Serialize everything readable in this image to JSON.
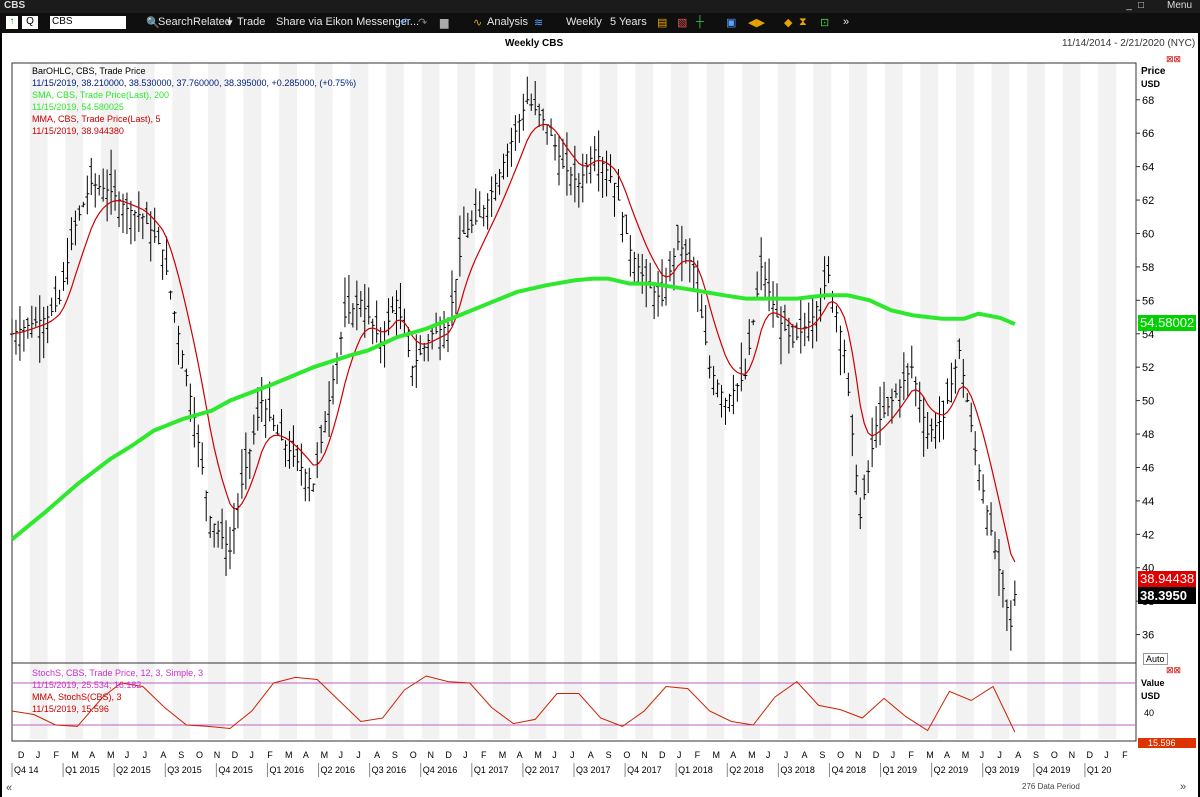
{
  "window": {
    "title": "CBS",
    "menu_label": "Menu"
  },
  "toolbar": {
    "instrument_type": "Q",
    "ric_value": "CBS",
    "items": [
      "Search",
      "Related",
      "Trade",
      "Share via Eikon Messenger...",
      "Analysis",
      "Weekly",
      "5 Years"
    ]
  },
  "chart_header": {
    "title": "Weekly CBS",
    "date_range": "11/14/2014 - 2/21/2020 (NYC)"
  },
  "price_legend": [
    {
      "text": "BarOHLC, CBS, Trade Price",
      "color": "#000000"
    },
    {
      "text": "11/15/2019, 38.210000, 38.530000, 37.760000, 38.395000, +0.285000, (+0.75%)",
      "color": "#000000"
    },
    {
      "text": "SMA, CBS, Trade Price(Last),  200",
      "color": "#2ee82e"
    },
    {
      "text": "11/15/2019, 54.580025",
      "color": "#2ee82e"
    },
    {
      "text": "MMA, CBS, Trade Price(Last),  5",
      "color": "#cc0000"
    },
    {
      "text": "11/15/2019, 38.944380",
      "color": "#cc0000"
    }
  ],
  "stoch_legend": [
    {
      "text": "StochS, CBS, Trade Price,  12, 3, Simple, 3",
      "color": "#cc33cc"
    },
    {
      "text": "11/15/2019, 25.534, 16.182",
      "color": "#cc33cc"
    },
    {
      "text": "MMA, StochS(CBS),  3",
      "color": "#cc0000"
    },
    {
      "text": "11/15/2019, 15.596",
      "color": "#cc0000"
    }
  ],
  "badges": {
    "sma": "54.58002",
    "mma": "38.94438",
    "last": "38.3950",
    "stoch": "15.596"
  },
  "axis_labels": {
    "price_title": "Price",
    "price_unit": "USD",
    "auto": "Auto",
    "stoch_title": "Value",
    "stoch_unit": "USD",
    "stoch_tick": "40"
  },
  "footer": {
    "data_period": "276 Data Period"
  },
  "chart_data": [
    {
      "type": "ohlc",
      "title": "Weekly CBS",
      "ylabel": "Price USD",
      "ylim": [
        34.3,
        70.2
      ],
      "yticks": [
        36,
        38,
        40,
        42,
        44,
        46,
        48,
        50,
        52,
        54,
        56,
        58,
        60,
        62,
        64,
        66,
        68
      ],
      "months": [
        "D",
        "J",
        "F",
        "M",
        "A",
        "M",
        "J",
        "J",
        "A",
        "S",
        "O",
        "N",
        "D",
        "J",
        "F",
        "M",
        "A",
        "M",
        "J",
        "J",
        "A",
        "S",
        "O",
        "N",
        "D",
        "J",
        "F",
        "M",
        "A",
        "M",
        "J",
        "J",
        "A",
        "S",
        "O",
        "N",
        "D",
        "J",
        "F",
        "M",
        "A",
        "M",
        "J",
        "J",
        "A",
        "S",
        "O",
        "N",
        "D",
        "J",
        "F",
        "M",
        "A",
        "M",
        "J",
        "J",
        "A",
        "S",
        "O",
        "N",
        "D",
        "J",
        "F"
      ],
      "quarters": [
        "Q4 14",
        "Q1 2015",
        "Q2 2015",
        "Q3 2015",
        "Q4 2015",
        "Q1 2016",
        "Q2 2016",
        "Q3 2016",
        "Q4 2016",
        "Q1 2017",
        "Q2 2017",
        "Q3 2017",
        "Q4 2017",
        "Q1 2018",
        "Q2 2018",
        "Q3 2018",
        "Q4 2018",
        "Q1 2019",
        "Q2 2019",
        "Q3 2019",
        "Q4 2019",
        "Q1 20"
      ],
      "x_weeks": [
        0,
        4,
        9,
        12,
        16,
        20,
        25,
        29,
        33,
        38,
        42,
        46,
        50,
        55,
        58,
        63,
        67,
        70,
        76,
        80,
        84,
        88,
        93,
        97,
        101,
        106,
        110,
        114,
        118,
        122,
        126,
        130,
        135,
        139,
        143,
        147,
        152,
        156,
        160,
        164,
        168,
        172,
        176,
        180,
        185,
        189,
        193,
        197,
        202,
        206,
        210,
        214,
        218,
        222,
        227,
        231,
        235,
        239,
        243,
        248,
        252,
        253
      ],
      "close": [
        54.0,
        54.5,
        55.0,
        56.0,
        60.5,
        63.0,
        62.5,
        61.5,
        61.0,
        59.0,
        54.0,
        49.0,
        43.0,
        41.0,
        45.0,
        50.0,
        48.0,
        47.0,
        45.0,
        50.0,
        55.0,
        56.0,
        53.5,
        56.0,
        52.0,
        54.0,
        54.5,
        60.0,
        61.0,
        63.0,
        65.5,
        68.0,
        66.5,
        64.0,
        63.0,
        65.0,
        63.0,
        59.0,
        57.0,
        56.0,
        59.5,
        58.0,
        52.0,
        50.0,
        51.5,
        58.0,
        55.0,
        53.5,
        55.0,
        57.5,
        53.0,
        43.0,
        48.5,
        50.0,
        52.0,
        48.0,
        49.0,
        53.0,
        47.0,
        41.0,
        36.5,
        38.4
      ],
      "sma200": [
        41.7,
        43.3,
        45.0,
        46.5,
        47.3,
        48.2,
        48.9,
        49.4,
        50.0,
        51.0,
        52.0,
        52.7,
        53.0,
        53.8,
        54.3,
        55.0,
        55.8,
        56.5,
        56.9,
        57.2,
        57.3,
        57.3,
        57.0,
        57.0,
        56.8,
        56.6,
        56.3,
        56.1,
        56.1,
        56.1,
        56.3,
        56.3,
        56.0,
        55.4,
        55.1,
        54.9,
        54.9,
        55.2,
        54.95,
        54.58
      ],
      "sma200_weeks": [
        0,
        9,
        18,
        27,
        33,
        39,
        47,
        55,
        60,
        72,
        83,
        93,
        98,
        106,
        114,
        122,
        131,
        139,
        147,
        155,
        160,
        164,
        170,
        176,
        182,
        188,
        196,
        202,
        210,
        216,
        224,
        230,
        236,
        242,
        248,
        256,
        262,
        266,
        272,
        276
      ]
    },
    {
      "type": "line",
      "title": "StochS, CBS, Trade Price, 12, 3, Simple, 3",
      "ylabel": "Value USD",
      "ylim": [
        0,
        100
      ],
      "levels": [
        20,
        80
      ],
      "x_weeks": [
        0,
        6,
        12,
        18,
        25,
        30,
        36,
        42,
        48,
        54,
        60,
        66,
        72,
        78,
        84,
        90,
        96,
        102,
        108,
        114,
        120,
        126,
        132,
        138,
        144,
        150,
        156,
        162,
        168,
        174,
        180,
        186,
        192,
        198,
        204,
        210,
        216,
        222,
        228,
        234,
        240,
        246,
        252,
        258,
        264,
        270,
        276
      ],
      "values": [
        40,
        35,
        20,
        18,
        60,
        80,
        75,
        45,
        20,
        18,
        15,
        40,
        80,
        88,
        85,
        55,
        25,
        30,
        70,
        90,
        82,
        80,
        45,
        22,
        28,
        65,
        65,
        30,
        18,
        40,
        75,
        72,
        40,
        25,
        20,
        60,
        82,
        48,
        42,
        30,
        58,
        32,
        12,
        68,
        55,
        75,
        10
      ]
    }
  ]
}
